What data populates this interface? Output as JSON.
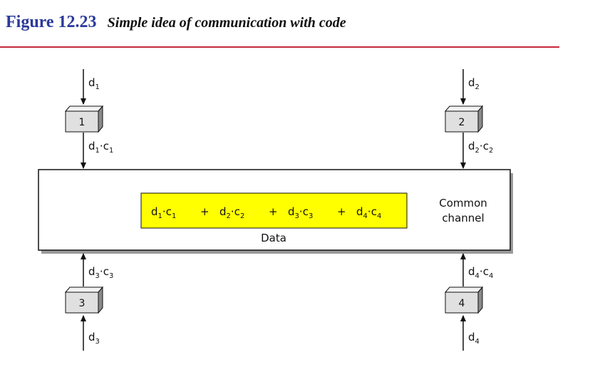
{
  "figure": {
    "number": "Figure 12.23",
    "title": "Simple idea of communication with code"
  },
  "stations": [
    {
      "id": "1",
      "data": "d",
      "data_sub": "1",
      "code": "c",
      "code_sub": "1"
    },
    {
      "id": "2",
      "data": "d",
      "data_sub": "2",
      "code": "c",
      "code_sub": "2"
    },
    {
      "id": "3",
      "data": "d",
      "data_sub": "3",
      "code": "c",
      "code_sub": "3"
    },
    {
      "id": "4",
      "data": "d",
      "data_sub": "4",
      "code": "c",
      "code_sub": "4"
    }
  ],
  "channel": {
    "label_line1": "Common",
    "label_line2": "channel",
    "data_label": "Data",
    "plus": "+",
    "dot": "·"
  },
  "colors": {
    "caption_number": "#2b3a9a",
    "rule": "#c8283a",
    "highlight": "#ffff00",
    "station_box": "#e0e0e0"
  }
}
